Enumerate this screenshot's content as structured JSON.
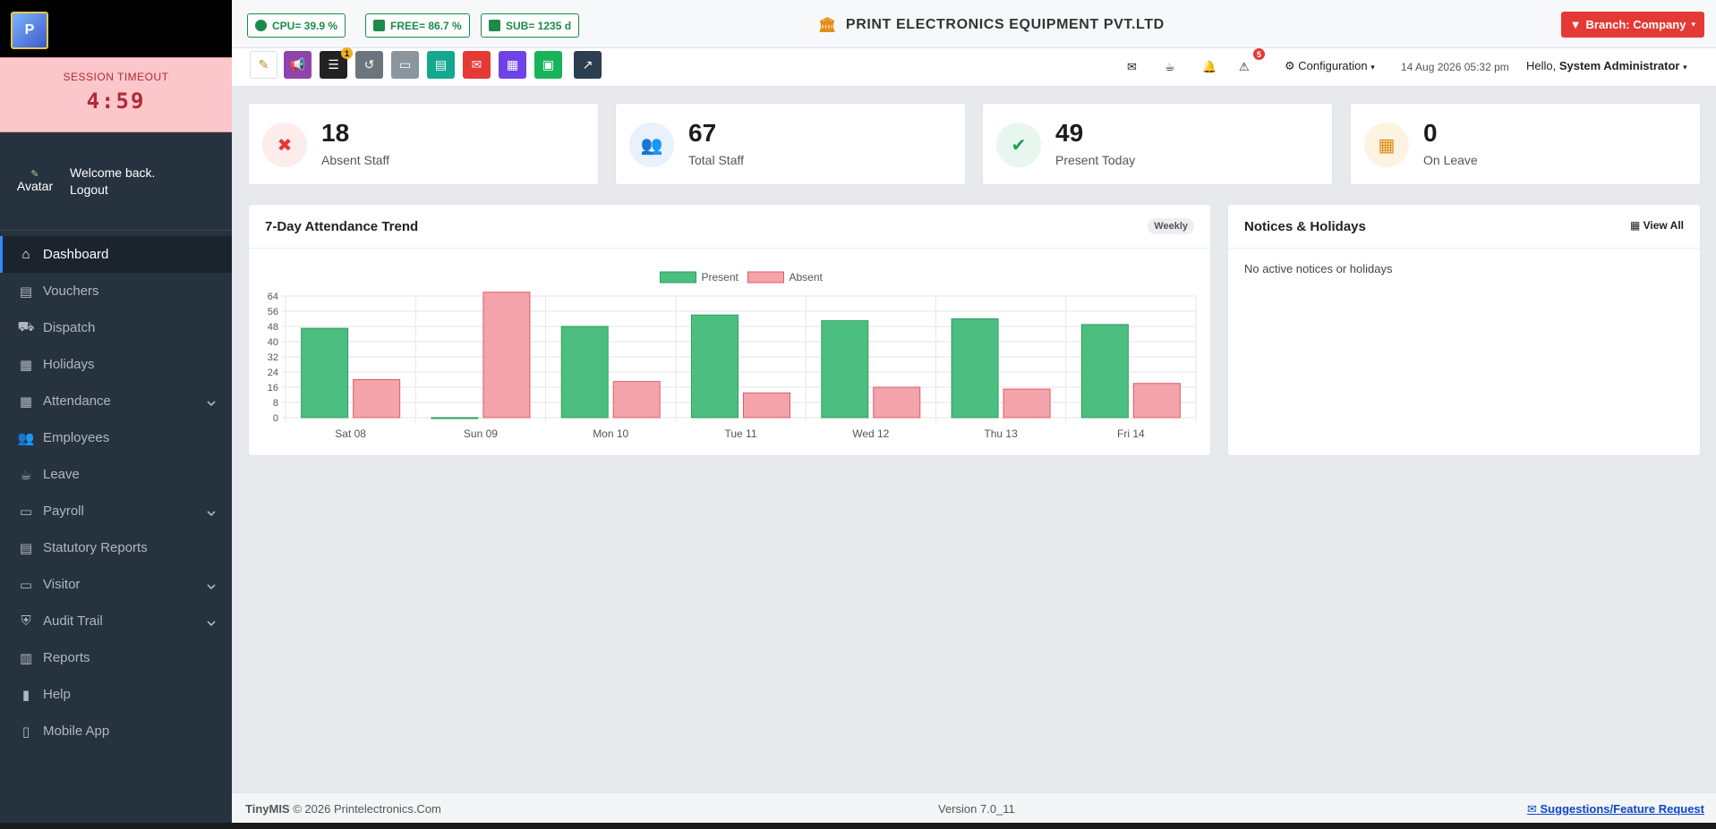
{
  "session": {
    "label": "SESSION TIMEOUT",
    "time": "4:59"
  },
  "profile": {
    "avatar_alt": "Avatar",
    "welcome": "Welcome back.",
    "logout": "Logout"
  },
  "sidebar": {
    "items": [
      {
        "label": "Dashboard",
        "icon": "home-icon",
        "active": true
      },
      {
        "label": "Vouchers",
        "icon": "document-icon"
      },
      {
        "label": "Dispatch",
        "icon": "truck-icon"
      },
      {
        "label": "Holidays",
        "icon": "calendar-icon"
      },
      {
        "label": "Attendance",
        "icon": "calendar-check-icon",
        "submenu": true
      },
      {
        "label": "Employees",
        "icon": "users-icon"
      },
      {
        "label": "Leave",
        "icon": "coffee-icon"
      },
      {
        "label": "Payroll",
        "icon": "money-icon",
        "submenu": true
      },
      {
        "label": "Statutory Reports",
        "icon": "file-icon"
      },
      {
        "label": "Visitor",
        "icon": "id-card-icon",
        "submenu": true
      },
      {
        "label": "Audit Trail",
        "icon": "shield-icon",
        "submenu": true
      },
      {
        "label": "Reports",
        "icon": "chart-icon"
      },
      {
        "label": "Help",
        "icon": "book-icon"
      },
      {
        "label": "Mobile App",
        "icon": "mobile-icon"
      }
    ]
  },
  "topbar": {
    "cpu": "CPU= 39.9 %",
    "free": "FREE= 86.7 %",
    "sub": "SUB= 1235 d",
    "company": "PRINT ELECTRONICS EQUIPMENT PVT.LTD",
    "branch": "Branch: Company"
  },
  "toolbar": {
    "tasks_badge": "1",
    "alerts_badge": "5",
    "configuration": "Configuration",
    "datetime": "14 Aug 2026 05:32 pm",
    "hello": "Hello,",
    "user": "System Administrator"
  },
  "cards": [
    {
      "value": "18",
      "label": "Absent Staff",
      "icon": "user-x-icon",
      "color": "#e53935",
      "bg": "#fdecec"
    },
    {
      "value": "67",
      "label": "Total Staff",
      "icon": "users-icon",
      "color": "#1565c0",
      "bg": "#e8f1fc"
    },
    {
      "value": "49",
      "label": "Present Today",
      "icon": "user-check-icon",
      "color": "#1e9e55",
      "bg": "#e7f6ee"
    },
    {
      "value": "0",
      "label": "On Leave",
      "icon": "calendar-x-icon",
      "color": "#e0890f",
      "bg": "#fdf3e3"
    }
  ],
  "trend_panel": {
    "title": "7-Day Attendance Trend",
    "badge": "Weekly"
  },
  "notices_panel": {
    "title": "Notices & Holidays",
    "view_all": "View All",
    "empty": "No active notices or holidays"
  },
  "chart_data": {
    "type": "bar",
    "categories": [
      "Sat 08",
      "Sun 09",
      "Mon 10",
      "Tue 11",
      "Wed 12",
      "Thu 13",
      "Fri 14"
    ],
    "series": [
      {
        "name": "Present",
        "values": [
          47,
          0,
          48,
          54,
          51,
          52,
          49
        ],
        "color": "#4cbf80"
      },
      {
        "name": "Absent",
        "values": [
          20,
          66,
          19,
          13,
          16,
          15,
          18
        ],
        "color": "#f4a3aa"
      }
    ],
    "yticks": [
      0,
      8,
      16,
      24,
      32,
      40,
      48,
      56,
      64
    ],
    "ylim": [
      0,
      64
    ],
    "legend": "top-center",
    "grid": true
  },
  "footer": {
    "brand": "TinyMIS",
    "copyright": "© 2026 Printelectronics.Com",
    "version": "Version 7.0_11",
    "suggest": "Suggestions/Feature Request"
  }
}
